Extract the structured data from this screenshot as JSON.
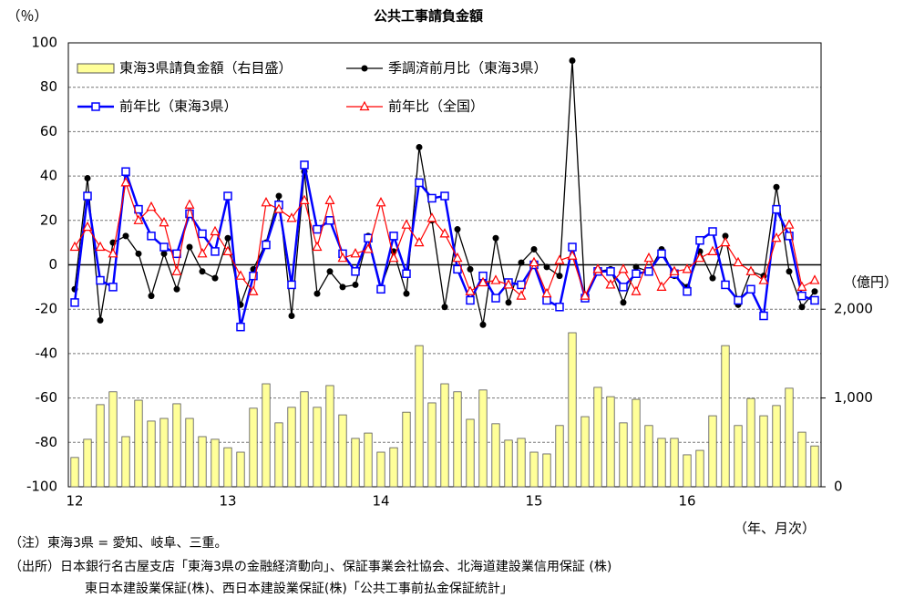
{
  "chart_data": {
    "type": "bar_line",
    "title": "公共工事請負金額",
    "y_axis_label": "（％）",
    "y2_axis_label": "（億円）",
    "x_axis_label": "（年、月次）",
    "categories": [
      "12",
      null,
      null,
      null,
      null,
      null,
      null,
      null,
      null,
      null,
      null,
      null,
      "13",
      null,
      null,
      null,
      null,
      null,
      null,
      null,
      null,
      null,
      null,
      null,
      "14",
      null,
      null,
      null,
      null,
      null,
      null,
      null,
      null,
      null,
      null,
      null,
      "15",
      null,
      null,
      null,
      null,
      null,
      null,
      null,
      null,
      null,
      null,
      null,
      "16",
      null,
      null,
      null,
      null,
      null,
      null,
      null,
      null,
      null,
      null
    ],
    "series": [
      {
        "name": "東海3県請負金額（右目盛）",
        "type": "bar",
        "axis": "y2",
        "color": "#ffff99",
        "values": [
          330,
          535,
          925,
          1070,
          565,
          975,
          740,
          770,
          935,
          770,
          565,
          535,
          440,
          390,
          885,
          1160,
          720,
          895,
          1070,
          895,
          1140,
          810,
          545,
          605,
          390,
          440,
          840,
          1590,
          945,
          1160,
          1070,
          760,
          1090,
          710,
          525,
          545,
          390,
          370,
          690,
          1735,
          790,
          1120,
          1015,
          720,
          985,
          690,
          545,
          545,
          360,
          410,
          800,
          1590,
          690,
          995,
          800,
          915,
          1110,
          615,
          460
        ]
      },
      {
        "name": "季調済前月比（東海3県）",
        "type": "line",
        "marker": "circle",
        "color": "#000000",
        "values": [
          -11,
          39,
          -25,
          10,
          13,
          5,
          -14,
          5,
          -11,
          8,
          -3,
          -6,
          12,
          -18,
          -2,
          10,
          31,
          -23,
          42,
          -13,
          -3,
          -10,
          -9,
          13,
          -10,
          6,
          -13,
          53,
          20,
          -19,
          16,
          -2,
          -27,
          12,
          -17,
          1,
          7,
          -1,
          -5,
          92,
          -15,
          -3,
          -2,
          -17,
          -1,
          -3,
          7,
          -5,
          -10,
          6,
          -6,
          13,
          -18,
          -3,
          -5,
          35,
          -3,
          -19,
          -12
        ]
      },
      {
        "name": "前年比（東海3県）",
        "type": "line",
        "marker": "square",
        "color": "#0000ff",
        "values": [
          -17,
          31,
          -7,
          -10,
          42,
          25,
          13,
          8,
          5,
          23,
          14,
          6,
          31,
          -28,
          -5,
          9,
          27,
          -9,
          45,
          16,
          20,
          5,
          -3,
          12,
          -11,
          13,
          -4,
          37,
          30,
          31,
          -2,
          -16,
          -5,
          -15,
          -8,
          -9,
          0,
          -16,
          -19,
          8,
          -15,
          -3,
          -3,
          -10,
          -4,
          -3,
          5,
          -4,
          -12,
          11,
          15,
          -9,
          -16,
          -11,
          -23,
          25,
          13,
          -14,
          -16
        ]
      },
      {
        "name": "前年比（全国）",
        "type": "line",
        "marker": "triangle",
        "color": "#ff0000",
        "values": [
          8,
          17,
          8,
          5,
          37,
          20,
          26,
          19,
          -3,
          27,
          5,
          15,
          6,
          -5,
          -12,
          28,
          25,
          21,
          29,
          8,
          29,
          3,
          5,
          7,
          28,
          3,
          18,
          10,
          21,
          14,
          3,
          -12,
          -8,
          -7,
          -9,
          -14,
          1,
          -13,
          2,
          4,
          -14,
          -2,
          -9,
          -2,
          -12,
          3,
          -10,
          -3,
          -2,
          3,
          6,
          10,
          1,
          -3,
          -7,
          12,
          18,
          -10,
          -7
        ]
      }
    ],
    "ylim": [
      -100,
      100
    ],
    "yticks": [
      -100,
      -80,
      -60,
      -40,
      -20,
      0,
      20,
      40,
      60,
      80,
      100
    ],
    "y2lim": [
      0,
      5000
    ],
    "y2ticks": [
      0,
      {
        "value": 1000,
        "label": "1,000"
      },
      {
        "value": 2000,
        "label": "2,000"
      }
    ],
    "grid": true,
    "notes": [
      "（注）東海3県 = 愛知、岐阜、三重。",
      "（出所）日本銀行名古屋支店「東海3県の金融経済動向」、保証事業会社協会、北海道建設業信用保証 (株)",
      "東日本建設業保証(株)、西日本建設業保証(株)「公共工事前払金保証統計」"
    ]
  }
}
